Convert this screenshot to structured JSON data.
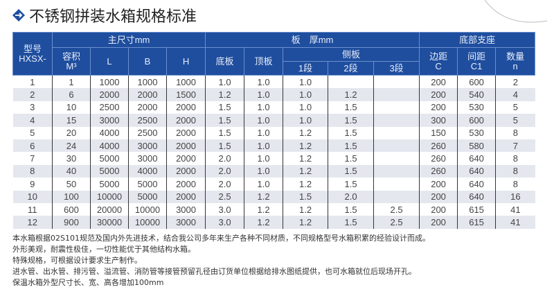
{
  "title": "不锈钢拼装水箱规格标准",
  "header": {
    "model": "型号",
    "model_prefix": "HXSX-",
    "main_size": "主尺寸mm",
    "volume": "容积",
    "volume_unit": "M³",
    "L": "L",
    "B": "B",
    "H": "H",
    "thickness": "板　厚mm",
    "bottom_plate": "底板",
    "top_plate": "顶板",
    "side_plate": "侧板",
    "seg1": "1段",
    "seg2": "2段",
    "seg3": "3段",
    "support": "底部支座",
    "edge": "边距",
    "edge_code": "C",
    "spacing": "间距",
    "spacing_code": "C1",
    "count": "数量",
    "count_code": "n"
  },
  "rows": [
    [
      "1",
      "1",
      "1000",
      "1000",
      "1000",
      "1.0",
      "1.0",
      "1.0",
      "",
      "",
      "200",
      "600",
      "2"
    ],
    [
      "2",
      "6",
      "2000",
      "2000",
      "1500",
      "1.2",
      "1.0",
      "1.0",
      "1.2",
      "",
      "200",
      "540",
      "4"
    ],
    [
      "3",
      "10",
      "2500",
      "2000",
      "2000",
      "1.5",
      "1.0",
      "1.0",
      "1.5",
      "",
      "200",
      "530",
      "5"
    ],
    [
      "4",
      "15",
      "3000",
      "2500",
      "2000",
      "1.5",
      "1.0",
      "1.0",
      "1.5",
      "",
      "300",
      "600",
      "5"
    ],
    [
      "5",
      "20",
      "4000",
      "2500",
      "2000",
      "1.5",
      "1.0",
      "1.2",
      "1.5",
      "",
      "150",
      "530",
      "8"
    ],
    [
      "6",
      "24",
      "4000",
      "3000",
      "2000",
      "1.5",
      "1.0",
      "1.2",
      "1.5",
      "",
      "260",
      "580",
      "7"
    ],
    [
      "7",
      "30",
      "5000",
      "3000",
      "2000",
      "2.0",
      "1.0",
      "1.2",
      "1.5",
      "",
      "260",
      "640",
      "8"
    ],
    [
      "8",
      "40",
      "5000",
      "4000",
      "2000",
      "2.0",
      "1.0",
      "1.2",
      "1.5",
      "",
      "260",
      "640",
      "8"
    ],
    [
      "9",
      "50",
      "5000",
      "5000",
      "2000",
      "2.0",
      "1.0",
      "1.2",
      "1.5",
      "",
      "200",
      "640",
      "8"
    ],
    [
      "10",
      "100",
      "10000",
      "5000",
      "2000",
      "2.5",
      "1.2",
      "1.5",
      "2.0",
      "",
      "200",
      "640",
      "16"
    ],
    [
      "11",
      "600",
      "20000",
      "10000",
      "3000",
      "3.0",
      "1.2",
      "1.2",
      "1.5",
      "2.5",
      "200",
      "615",
      "41"
    ],
    [
      "12",
      "900",
      "30000",
      "10000",
      "3000",
      "3.0",
      "1.2",
      "1.2",
      "1.5",
      "2.5",
      "200",
      "615",
      "41"
    ]
  ],
  "notes": [
    "本水箱根据02S101规范及国内外先进技术，结合我公司多年来生产各种不同材质，不同规格型号水箱积累的经验设计而成。",
    "外形美观，耐震性极佳，一切性能优于其他结构水箱。",
    "特殊规格，可根据设计要求生产制作。",
    "进水管、出水管、排污管、溢流管、消防管等接管预留孔径由订货单位根据给排水图纸提供，也可水箱就位后现场开孔。",
    "保温水箱外型尺寸长、宽、高各增加100mm"
  ],
  "colors": {
    "header_bg": "#1f4e9e",
    "stripe": "#e4e7ee",
    "icon": "#1f4e9e"
  },
  "icons": {
    "title_icon": "diamond-arrow-icon"
  }
}
